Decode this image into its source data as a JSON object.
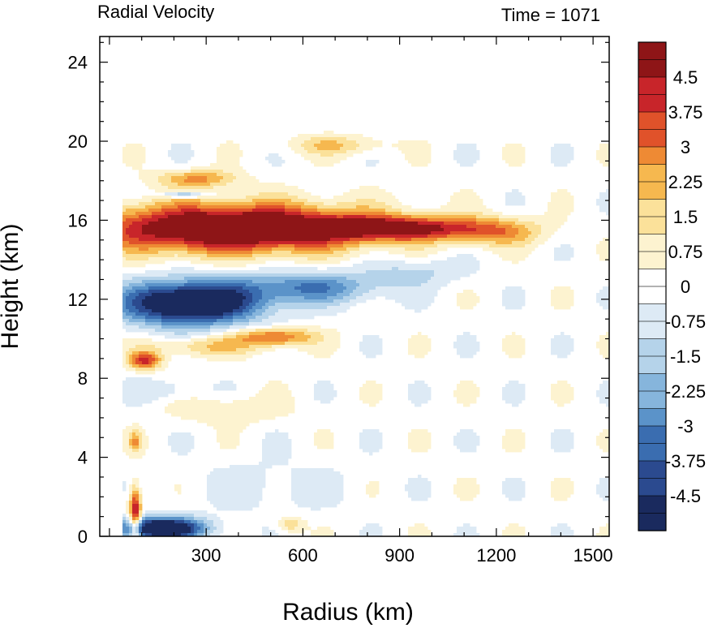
{
  "chart_data": {
    "type": "heatmap",
    "title": "Radial Velocity",
    "subtitle": "Time = 1071",
    "xlabel": "Radius (km)",
    "ylabel": "Height (km)",
    "xlim": [
      -30,
      1550
    ],
    "ylim": [
      0,
      25.3
    ],
    "xticks": [
      300,
      600,
      900,
      1200,
      1500
    ],
    "yticks": [
      0,
      4,
      8,
      12,
      16,
      20,
      24
    ],
    "grid": false,
    "colorbar": {
      "range": [
        -5.25,
        5.25
      ],
      "step": 0.375,
      "labels": [
        "4.5",
        "3.75",
        "3",
        "2.25",
        "1.5",
        "0.75",
        "0",
        "-0.75",
        "-1.5",
        "-2.25",
        "-3",
        "-3.75",
        "-4.5"
      ],
      "label_values": [
        4.5,
        3.75,
        3,
        2.25,
        1.5,
        0.75,
        0,
        -0.75,
        -1.5,
        -2.25,
        -3,
        -3.75,
        -4.5
      ],
      "colors": [
        "#1a2a5e",
        "#2b4a8f",
        "#3a6db0",
        "#5b93c9",
        "#86b5dc",
        "#b5d3ea",
        "#ddeaf5",
        "#ffffff",
        "#fdf3d0",
        "#fbe19a",
        "#f6b84f",
        "#ee8a34",
        "#e0522a",
        "#c8252a",
        "#8e1517"
      ]
    },
    "features": [
      {
        "x": 380,
        "y": 15.6,
        "sx": 420,
        "sy": 1.2,
        "v": 7.0
      },
      {
        "x": 900,
        "y": 15.6,
        "sx": 260,
        "sy": 0.6,
        "v": 4.5
      },
      {
        "x": 1200,
        "y": 15.4,
        "sx": 140,
        "sy": 0.7,
        "v": 2.2
      },
      {
        "x": 250,
        "y": 11.8,
        "sx": 210,
        "sy": 1.1,
        "v": -7.0
      },
      {
        "x": 620,
        "y": 12.6,
        "sx": 220,
        "sy": 0.8,
        "v": -3.0
      },
      {
        "x": 950,
        "y": 13.4,
        "sx": 160,
        "sy": 0.7,
        "v": -1.2
      },
      {
        "x": 110,
        "y": 8.9,
        "sx": 50,
        "sy": 0.45,
        "v": 4.0
      },
      {
        "x": 300,
        "y": 9.6,
        "sx": 180,
        "sy": 0.5,
        "v": 1.8
      },
      {
        "x": 510,
        "y": 10.1,
        "sx": 120,
        "sy": 0.45,
        "v": 3.5
      },
      {
        "x": 180,
        "y": 7.4,
        "sx": 110,
        "sy": 0.6,
        "v": -0.9
      },
      {
        "x": 270,
        "y": 18.1,
        "sx": 120,
        "sy": 0.45,
        "v": 2.6
      },
      {
        "x": 700,
        "y": 19.8,
        "sx": 150,
        "sy": 0.5,
        "v": 1.7
      },
      {
        "x": 230,
        "y": 17.3,
        "sx": 70,
        "sy": 0.18,
        "v": -2.6
      },
      {
        "x": 80,
        "y": 1.2,
        "sx": 18,
        "sy": 1.3,
        "v": 5.0
      },
      {
        "x": 160,
        "y": 0.4,
        "sx": 130,
        "sy": 0.55,
        "v": -7.0
      },
      {
        "x": 370,
        "y": 6.4,
        "sx": 170,
        "sy": 0.7,
        "v": 1.1
      },
      {
        "x": 80,
        "y": 4.8,
        "sx": 20,
        "sy": 0.5,
        "v": 2.4
      },
      {
        "x": 500,
        "y": 2.5,
        "sx": 220,
        "sy": 1.4,
        "v": -0.7
      },
      {
        "x": 560,
        "y": 0.6,
        "sx": 40,
        "sy": 0.4,
        "v": 1.8
      }
    ]
  }
}
